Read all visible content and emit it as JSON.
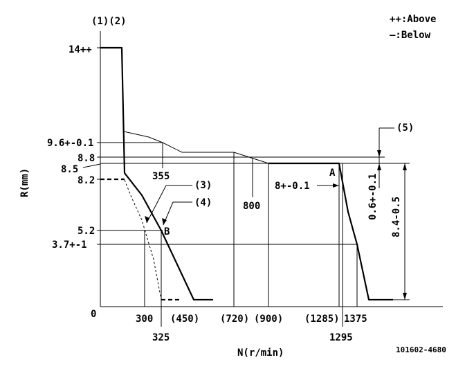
{
  "axes": {
    "y_label": "R(mm)",
    "x_label": "N(r/min)",
    "origin": "0",
    "top_label": "(1)(2)"
  },
  "legend": {
    "above": "++:Above",
    "below": "—:Below"
  },
  "y_ticks": {
    "r14": "14++",
    "r96": "9.6+-0.1",
    "r88": "8.8",
    "r85": "8.5",
    "r82": "8.2",
    "r52": "5.2",
    "r37": "3.7+-1"
  },
  "x_ticks": {
    "n300": "300",
    "n325": "325",
    "n450": "(450)",
    "n720": "(720)",
    "n900": "(900)",
    "n1285": "(1285)",
    "n1295": "1295",
    "n1375": "1375",
    "n355": "355",
    "n800": "800"
  },
  "annotations": {
    "n3": "(3)",
    "n4": "(4)",
    "n5": "(5)",
    "point_a": "A",
    "point_b": "B",
    "a_value": "8+-0.1",
    "dim_06": "0.6+-0.1",
    "dim_84": "8.4-0.5",
    "part_no": "101602-4680"
  }
}
